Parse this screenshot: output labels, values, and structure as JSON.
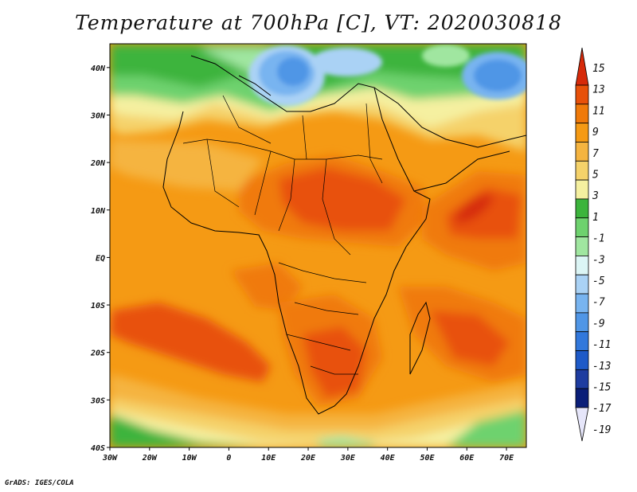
{
  "title": "Temperature at 700hPa [C], VT: 2020030818",
  "footer": "GrADS: IGES/COLA",
  "map": {
    "projection": "latlon",
    "lon_range": [
      -30,
      75
    ],
    "lat_range": [
      -40,
      45
    ],
    "lon_ticks": [
      {
        "value": -30,
        "label": "30W"
      },
      {
        "value": -20,
        "label": "20W"
      },
      {
        "value": -10,
        "label": "10W"
      },
      {
        "value": 0,
        "label": "0"
      },
      {
        "value": 10,
        "label": "10E"
      },
      {
        "value": 20,
        "label": "20E"
      },
      {
        "value": 30,
        "label": "30E"
      },
      {
        "value": 40,
        "label": "40E"
      },
      {
        "value": 50,
        "label": "50E"
      },
      {
        "value": 60,
        "label": "60E"
      },
      {
        "value": 70,
        "label": "70E"
      }
    ],
    "lat_ticks": [
      {
        "value": 40,
        "label": "40N"
      },
      {
        "value": 30,
        "label": "30N"
      },
      {
        "value": 20,
        "label": "20N"
      },
      {
        "value": 10,
        "label": "10N"
      },
      {
        "value": 0,
        "label": "EQ"
      },
      {
        "value": -10,
        "label": "10S"
      },
      {
        "value": -20,
        "label": "20S"
      },
      {
        "value": -30,
        "label": "30S"
      },
      {
        "value": -40,
        "label": "40S"
      }
    ],
    "field": "temperature_700hPa",
    "units": "C",
    "regions": [
      {
        "name": "mediterranean-cold",
        "colors": [
          "#5aaaf0",
          "#3c8ce6"
        ]
      },
      {
        "name": "sahel-warm",
        "colors": [
          "#f07a0a",
          "#e8510a"
        ]
      },
      {
        "name": "arabian-sea-warm",
        "colors": [
          "#e8510a",
          "#d4300a"
        ]
      },
      {
        "name": "south-atlantic-warm",
        "colors": [
          "#e8510a"
        ]
      },
      {
        "name": "southern-ocean-cool",
        "colors": [
          "#44cc44",
          "#8ee88e"
        ]
      }
    ]
  },
  "colorbar": {
    "labels": [
      "15",
      "13",
      "11",
      "9",
      "7",
      "5",
      "3",
      "1",
      "-1",
      "-3",
      "-5",
      "-7",
      "-9",
      "-11",
      "-13",
      "-15",
      "-17",
      "-19"
    ],
    "colors": [
      "#d62a0a",
      "#e8510a",
      "#f07a0a",
      "#f59a14",
      "#f5b440",
      "#f5d26a",
      "#f5f0a0",
      "#3cb43c",
      "#6ed26e",
      "#a0e6a0",
      "#dcf5f5",
      "#aad2f5",
      "#78b4f0",
      "#5096e6",
      "#3278dc",
      "#1e5ac8",
      "#1e3ca0",
      "#0a1e78",
      "#e6e6fa"
    ]
  }
}
